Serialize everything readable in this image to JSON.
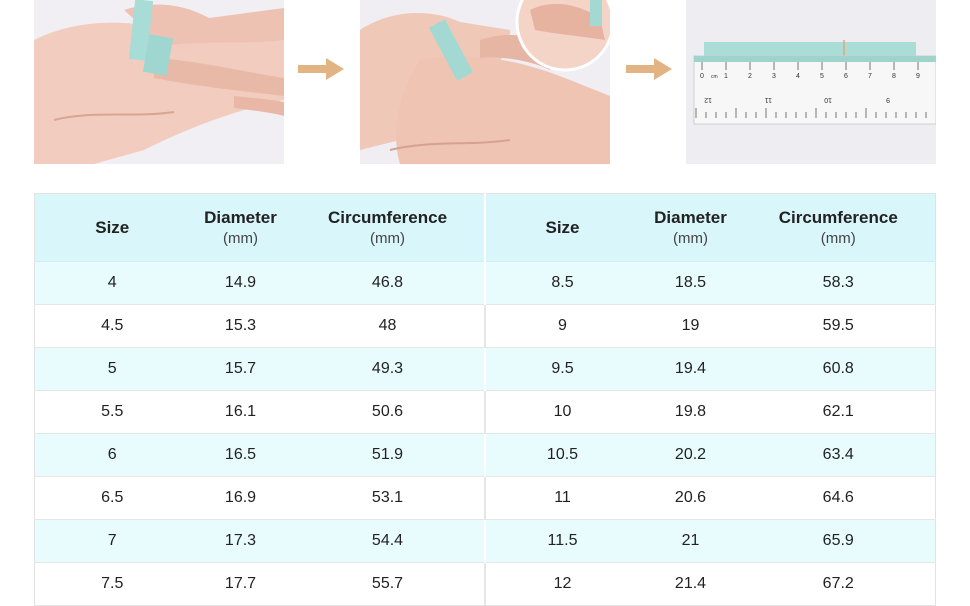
{
  "header": {
    "size": "Size",
    "diameter": "Diameter",
    "circumference": "Circumference",
    "unit": "(mm)"
  },
  "ruler": {
    "top_marks": [
      "0",
      "cm",
      "1",
      "2",
      "3",
      "4",
      "5",
      "6",
      "7",
      "8",
      "9"
    ],
    "bottom_marks": [
      "12",
      "11",
      "10",
      "9"
    ]
  },
  "rows": [
    {
      "l_size": "4",
      "l_diam": "14.9",
      "l_circ": "46.8",
      "r_size": "8.5",
      "r_diam": "18.5",
      "r_circ": "58.3"
    },
    {
      "l_size": "4.5",
      "l_diam": "15.3",
      "l_circ": "48",
      "r_size": "9",
      "r_diam": "19",
      "r_circ": "59.5"
    },
    {
      "l_size": "5",
      "l_diam": "15.7",
      "l_circ": "49.3",
      "r_size": "9.5",
      "r_diam": "19.4",
      "r_circ": "60.8"
    },
    {
      "l_size": "5.5",
      "l_diam": "16.1",
      "l_circ": "50.6",
      "r_size": "10",
      "r_diam": "19.8",
      "r_circ": "62.1"
    },
    {
      "l_size": "6",
      "l_diam": "16.5",
      "l_circ": "51.9",
      "r_size": "10.5",
      "r_diam": "20.2",
      "r_circ": "63.4"
    },
    {
      "l_size": "6.5",
      "l_diam": "16.9",
      "l_circ": "53.1",
      "r_size": "11",
      "r_diam": "20.6",
      "r_circ": "64.6"
    },
    {
      "l_size": "7",
      "l_diam": "17.3",
      "l_circ": "54.4",
      "r_size": "11.5",
      "r_diam": "21",
      "r_circ": "65.9"
    },
    {
      "l_size": "7.5",
      "l_diam": "17.7",
      "l_circ": "55.7",
      "r_size": "12",
      "r_diam": "21.4",
      "r_circ": "67.2"
    }
  ]
}
